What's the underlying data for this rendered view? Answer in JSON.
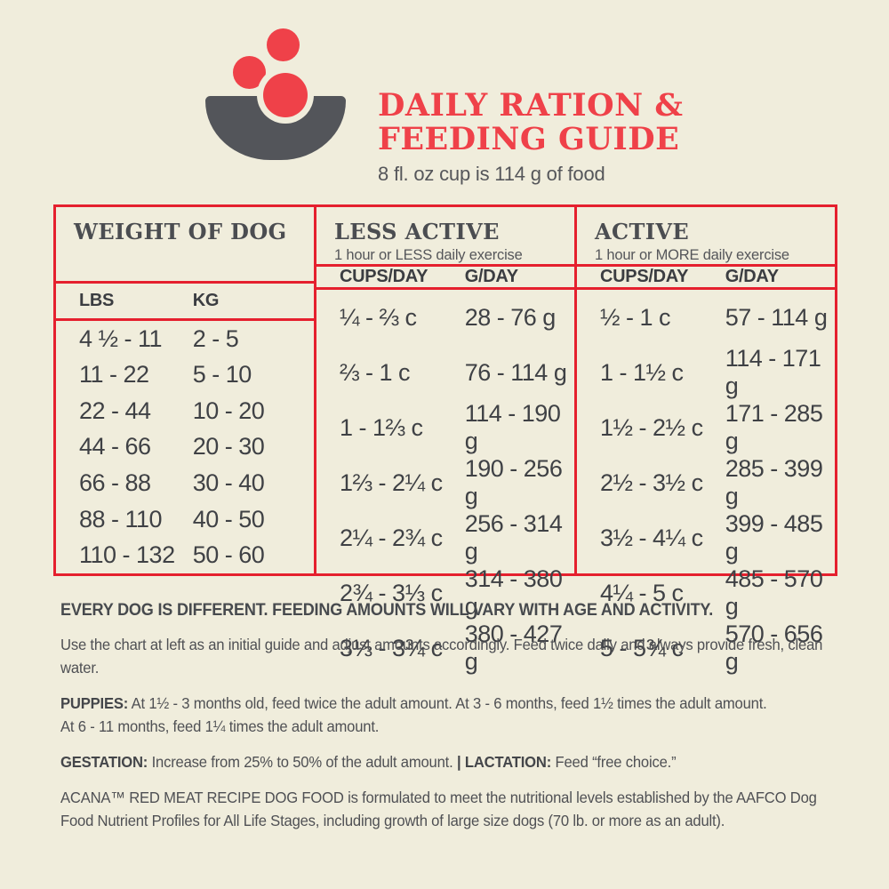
{
  "colors": {
    "background": "#F0EDDC",
    "accent_red": "#EF4149",
    "table_border_red": "#E5202E",
    "bowl_gray": "#53555A",
    "text_dark": "#3F4145",
    "text_gray": "#55565A"
  },
  "header": {
    "logo": "bowl-with-kibble-icon",
    "title_line1": "DAILY RATION &",
    "title_line2": "FEEDING GUIDE",
    "subtitle": "8 fl. oz cup is 114 g of food"
  },
  "table": {
    "sections": [
      {
        "title": "WEIGHT OF DOG",
        "subtitle": "",
        "col1": "LBS",
        "col2": "KG"
      },
      {
        "title": "LESS ACTIVE",
        "subtitle": "1 hour or LESS daily exercise",
        "col1": "CUPS/DAY",
        "col2": "G/DAY"
      },
      {
        "title": "ACTIVE",
        "subtitle": "1 hour or MORE daily exercise",
        "col1": "CUPS/DAY",
        "col2": "G/DAY"
      }
    ],
    "rows": [
      [
        "4 ½ - 11",
        "2 - 5",
        "¼ - ⅔ c",
        "28 - 76 g",
        "½ - 1 c",
        "57 - 114 g"
      ],
      [
        "11 - 22",
        "5 - 10",
        "⅔ - 1 c",
        "76 - 114 g",
        "1 - 1½ c",
        "114 - 171 g"
      ],
      [
        "22 - 44",
        "10 - 20",
        "1 - 1⅔ c",
        "114 - 190 g",
        "1½ - 2½ c",
        "171 - 285 g"
      ],
      [
        "44 - 66",
        "20 - 30",
        "1⅔ - 2¼ c",
        "190 - 256 g",
        "2½ - 3½ c",
        "285 - 399 g"
      ],
      [
        "66 - 88",
        "30 - 40",
        "2¼ - 2¾ c",
        "256 - 314 g",
        "3½ - 4¼ c",
        "399 - 485 g"
      ],
      [
        "88 - 110",
        "40 - 50",
        "2¾ - 3⅓ c",
        "314 - 380 g",
        "4¼ - 5 c",
        "485 - 570 g"
      ],
      [
        "110 - 132",
        "50 - 60",
        "3⅓ - 3¾ c",
        "380 - 427 g",
        "5 - 5¾ c",
        "570 - 656 g"
      ]
    ]
  },
  "notes": {
    "heading": "EVERY DOG IS DIFFERENT. FEEDING AMOUNTS WILL VARY WITH AGE AND ACTIVITY.",
    "intro": "Use the chart at left as an initial guide and adjust amounts accordingly. Feed twice daily and always provide fresh, clean water.",
    "puppies_label": "PUPPIES:",
    "puppies_line1": "At 1½ - 3 months old, feed twice the adult amount. At 3 - 6 months, feed 1½ times the adult amount.",
    "puppies_line2": "At 6 - 11 months, feed 1¼ times the adult amount.",
    "gestation_label": "GESTATION:",
    "gestation_text": "Increase from 25% to 50% of the adult amount.",
    "separator": "|",
    "lactation_label": "LACTATION:",
    "lactation_text": "Feed “free choice.”",
    "aafco": "ACANA™ RED MEAT RECIPE DOG FOOD is formulated to meet the nutritional levels established by the AAFCO Dog Food Nutrient Profiles for All Life Stages, including growth of large size dogs (70 lb. or more as an adult)."
  }
}
